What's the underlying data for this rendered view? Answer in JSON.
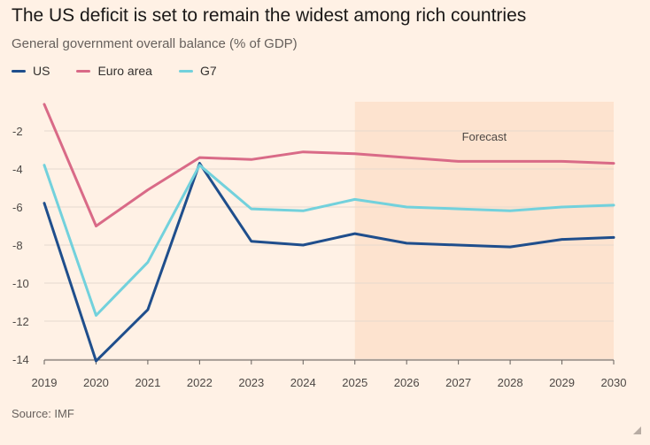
{
  "title": "The US deficit is set to remain the widest among rich countries",
  "subtitle": "General government overall balance (% of GDP)",
  "source": "Source: IMF",
  "forecast_label": "Forecast",
  "chart_data": {
    "type": "line",
    "x": [
      2019,
      2020,
      2021,
      2022,
      2023,
      2024,
      2025,
      2026,
      2027,
      2028,
      2029,
      2030
    ],
    "x_tick_labels": [
      "2019",
      "2020",
      "2021",
      "2022",
      "2023",
      "2024",
      "2025",
      "2026",
      "2027",
      "2028",
      "2029",
      "2030"
    ],
    "y_ticks": [
      -2,
      -4,
      -6,
      -8,
      -10,
      -12,
      -14
    ],
    "y_tick_labels": [
      "-2",
      "-4",
      "-6",
      "-8",
      "-10",
      "-12",
      "-14"
    ],
    "ylim": [
      -14,
      -0.5
    ],
    "forecast_range": [
      2025,
      2030
    ],
    "series": [
      {
        "name": "US",
        "color": "#1f4e8c",
        "values": [
          -5.8,
          -14.1,
          -11.4,
          -3.7,
          -7.8,
          -8.0,
          -7.4,
          -7.9,
          -8.0,
          -8.1,
          -7.7,
          -7.6
        ]
      },
      {
        "name": "Euro area",
        "color": "#d96a87",
        "values": [
          -0.6,
          -7.0,
          -5.1,
          -3.4,
          -3.5,
          -3.1,
          -3.2,
          -3.4,
          -3.6,
          -3.6,
          -3.6,
          -3.7
        ]
      },
      {
        "name": "G7",
        "color": "#72d1dc",
        "values": [
          -3.8,
          -11.7,
          -8.9,
          -3.8,
          -6.1,
          -6.2,
          -5.6,
          -6.0,
          -6.1,
          -6.2,
          -6.0,
          -5.9
        ]
      }
    ]
  }
}
